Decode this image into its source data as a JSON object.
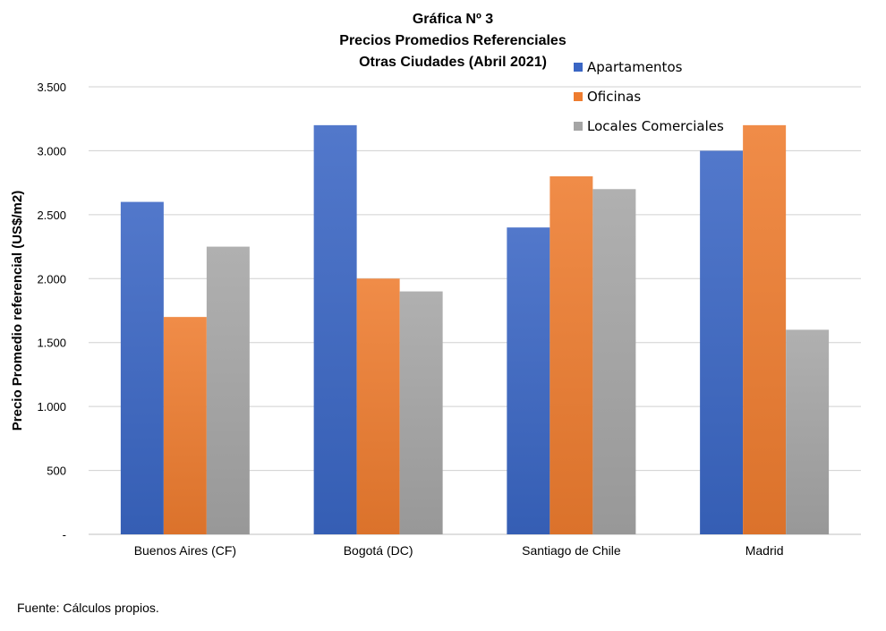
{
  "chart_data": {
    "type": "bar",
    "title": [
      "Gráfica Nº 3",
      "Precios Promedios Referenciales",
      "Otras Ciudades (Abril 2021)"
    ],
    "xlabel": "",
    "ylabel": "Precio Promedio referencial (US$/m2)",
    "categories": [
      "Buenos Aires (CF)",
      "Bogotá (DC)",
      "Santiago de Chile",
      "Madrid"
    ],
    "series": [
      {
        "name": "Apartamentos",
        "values": [
          2600,
          3200,
          2400,
          3000
        ],
        "color": "#3A66C4"
      },
      {
        "name": "Oficinas",
        "values": [
          1700,
          2000,
          2800,
          3200
        ],
        "color": "#EE7C2F"
      },
      {
        "name": "Locales Comerciales",
        "values": [
          2250,
          1900,
          2700,
          1600
        ],
        "color": "#A5A5A5"
      }
    ],
    "ylim": [
      0,
      3500
    ],
    "yticks": [
      0,
      500,
      1000,
      1500,
      2000,
      2500,
      3000,
      3500
    ],
    "ytick_labels": [
      "-",
      "500",
      "1.000",
      "1.500",
      "2.000",
      "2.500",
      "3.000",
      "3.500"
    ],
    "grid": true,
    "legend_position": "top-right"
  },
  "source": "Fuente: Cálculos propios."
}
